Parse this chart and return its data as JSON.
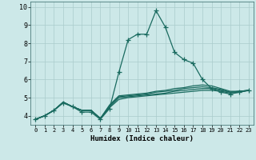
{
  "title": "",
  "xlabel": "Humidex (Indice chaleur)",
  "ylabel": "",
  "bg_color": "#cce8e8",
  "grid_color": "#aacccc",
  "line_color": "#1a6b60",
  "xlim": [
    -0.5,
    23.5
  ],
  "ylim": [
    3.5,
    10.3
  ],
  "xticks": [
    0,
    1,
    2,
    3,
    4,
    5,
    6,
    7,
    8,
    9,
    10,
    11,
    12,
    13,
    14,
    15,
    16,
    17,
    18,
    19,
    20,
    21,
    22,
    23
  ],
  "yticks": [
    4,
    5,
    6,
    7,
    8,
    9,
    10
  ],
  "series": [
    {
      "x": [
        0,
        1,
        2,
        3,
        4,
        5,
        6,
        7,
        8,
        9,
        10,
        11,
        12,
        13,
        14,
        15,
        16,
        17,
        18,
        19,
        20,
        21,
        22,
        23
      ],
      "y": [
        3.8,
        4.0,
        4.3,
        4.7,
        4.5,
        4.2,
        4.2,
        3.8,
        4.4,
        6.4,
        8.2,
        8.5,
        8.5,
        9.8,
        8.9,
        7.5,
        7.1,
        6.9,
        6.0,
        5.5,
        5.3,
        5.2,
        5.3,
        5.4
      ],
      "marker": true
    },
    {
      "x": [
        0,
        1,
        2,
        3,
        4,
        5,
        6,
        7,
        8,
        9,
        10,
        11,
        12,
        13,
        14,
        15,
        16,
        17,
        18,
        19,
        20,
        21,
        22,
        23
      ],
      "y": [
        3.8,
        4.0,
        4.3,
        4.75,
        4.5,
        4.3,
        4.3,
        3.85,
        4.45,
        4.9,
        5.0,
        5.05,
        5.1,
        5.15,
        5.2,
        5.25,
        5.3,
        5.35,
        5.4,
        5.4,
        5.35,
        5.25,
        5.3,
        5.4
      ],
      "marker": false
    },
    {
      "x": [
        0,
        1,
        2,
        3,
        4,
        5,
        6,
        7,
        8,
        9,
        10,
        11,
        12,
        13,
        14,
        15,
        16,
        17,
        18,
        19,
        20,
        21,
        22,
        23
      ],
      "y": [
        3.8,
        4.0,
        4.3,
        4.75,
        4.5,
        4.3,
        4.3,
        3.85,
        4.5,
        5.0,
        5.05,
        5.1,
        5.15,
        5.2,
        5.25,
        5.35,
        5.4,
        5.45,
        5.5,
        5.5,
        5.4,
        5.3,
        5.35,
        5.4
      ],
      "marker": false
    },
    {
      "x": [
        0,
        1,
        2,
        3,
        4,
        5,
        6,
        7,
        8,
        9,
        10,
        11,
        12,
        13,
        14,
        15,
        16,
        17,
        18,
        19,
        20,
        21,
        22,
        23
      ],
      "y": [
        3.8,
        4.0,
        4.3,
        4.75,
        4.5,
        4.3,
        4.3,
        3.85,
        4.55,
        5.05,
        5.1,
        5.15,
        5.2,
        5.3,
        5.35,
        5.4,
        5.5,
        5.55,
        5.6,
        5.55,
        5.45,
        5.3,
        5.35,
        5.4
      ],
      "marker": false
    },
    {
      "x": [
        0,
        1,
        2,
        3,
        4,
        5,
        6,
        7,
        8,
        9,
        10,
        11,
        12,
        13,
        14,
        15,
        16,
        17,
        18,
        19,
        20,
        21,
        22,
        23
      ],
      "y": [
        3.8,
        4.0,
        4.3,
        4.75,
        4.5,
        4.3,
        4.3,
        3.85,
        4.6,
        5.1,
        5.15,
        5.2,
        5.25,
        5.35,
        5.4,
        5.5,
        5.55,
        5.65,
        5.7,
        5.65,
        5.5,
        5.35,
        5.35,
        5.4
      ],
      "marker": false
    }
  ],
  "marker_size": 4,
  "linewidth": 0.9
}
